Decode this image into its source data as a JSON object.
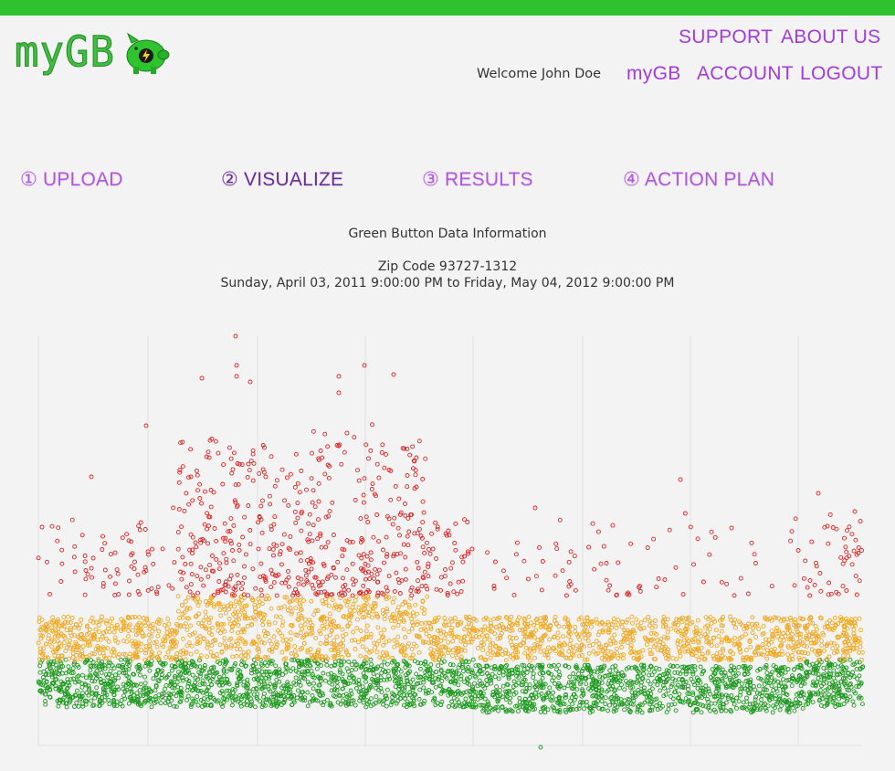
{
  "brand": {
    "logo_text": "myGB",
    "accent_color": "#2ec22e",
    "link_color": "#a33bdb",
    "mascot_icon": "piggy-bank-lightning-icon"
  },
  "header": {
    "nav_top": [
      "SUPPORT",
      "ABOUT US"
    ],
    "welcome": "Welcome John Doe",
    "nav_user": [
      "myGB",
      "ACCOUNT",
      "LOGOUT"
    ]
  },
  "steps": [
    {
      "label": "① UPLOAD",
      "active": false
    },
    {
      "label": "② VISUALIZE",
      "active": true
    },
    {
      "label": "③ RESULTS",
      "active": false
    },
    {
      "label": "④ ACTION PLAN",
      "active": false
    }
  ],
  "info": {
    "title": "Green Button Data Information",
    "zip": "Zip Code 93727-1312",
    "range": "Sunday, April 03, 2011 9:00:00 PM to Friday, May 04, 2012 9:00:00 PM"
  },
  "chart_data": {
    "type": "scatter",
    "title": "",
    "xlabel": "",
    "ylabel": "",
    "grid": true,
    "legend": "none",
    "series": [
      {
        "color": "#dd2222",
        "band": "high"
      },
      {
        "color": "#f0a820",
        "band": "medium"
      },
      {
        "color": "#1e9a1e",
        "band": "low"
      }
    ]
  }
}
